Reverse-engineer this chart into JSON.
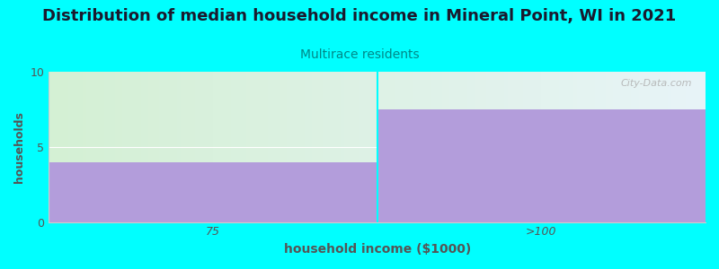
{
  "title": "Distribution of median household income in Mineral Point, WI in 2021",
  "subtitle": "Multirace residents",
  "xlabel": "household income ($1000)",
  "ylabel": "households",
  "categories": [
    "75",
    ">100"
  ],
  "values": [
    4,
    7.5
  ],
  "ylim": [
    0,
    10
  ],
  "yticks": [
    0,
    5,
    10
  ],
  "bar_color": "#b39ddb",
  "bg_color": "#00ffff",
  "title_color": "#1a1a2e",
  "subtitle_color": "#008888",
  "axis_label_color": "#555555",
  "tick_color": "#555555",
  "watermark": "City-Data.com",
  "watermark_color": "#b0b0b0",
  "gradient_left": "#d4f0d4",
  "gradient_right": "#e8f4f8",
  "title_fontsize": 13,
  "subtitle_fontsize": 10,
  "xlabel_fontsize": 10,
  "ylabel_fontsize": 9,
  "tick_fontsize": 9
}
